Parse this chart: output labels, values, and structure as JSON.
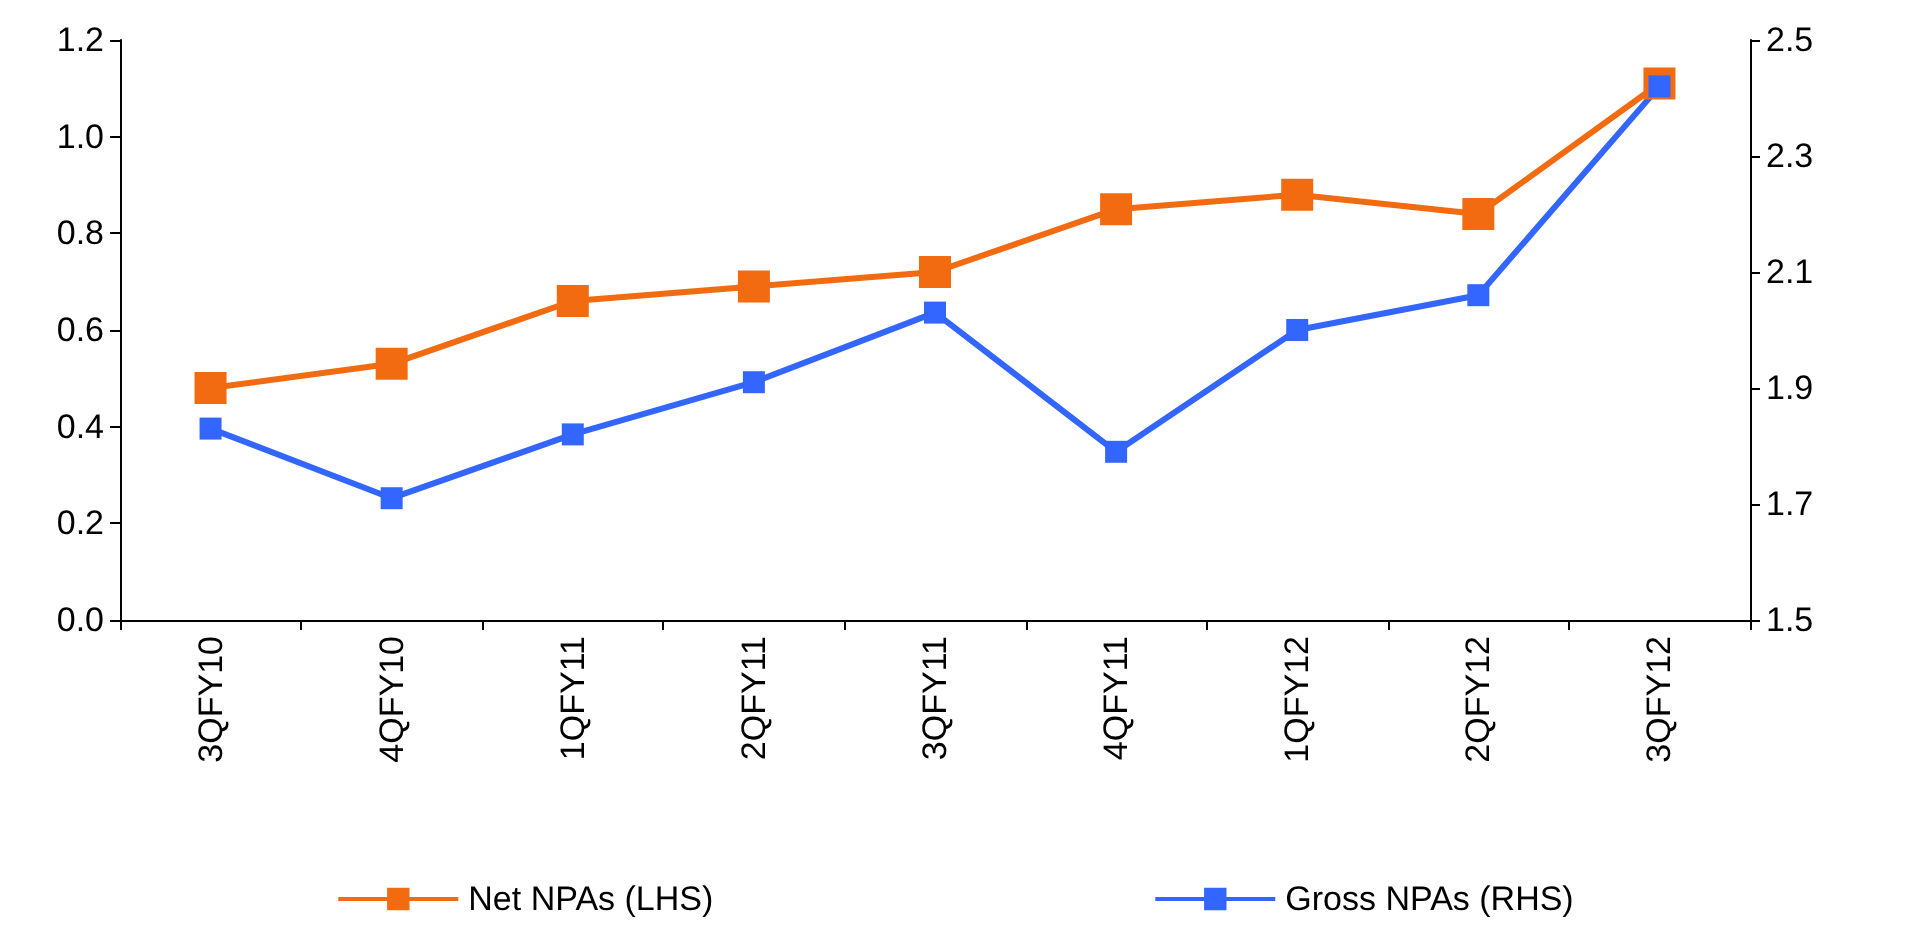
{
  "chart_data": {
    "type": "line",
    "categories": [
      "3QFY10",
      "4QFY10",
      "1QFY11",
      "2QFY11",
      "3QFY11",
      "4QFY11",
      "1QFY12",
      "2QFY12",
      "3QFY12"
    ],
    "series": [
      {
        "name": "Net NPAs (LHS)",
        "color": "#f26b10",
        "values": [
          0.48,
          0.53,
          0.66,
          0.69,
          0.72,
          0.85,
          0.88,
          0.84,
          1.11
        ]
      },
      {
        "name": "Gross NPAs (RHS)",
        "color": "#3366ff",
        "axis": "y2",
        "values": [
          1.83,
          1.71,
          1.82,
          1.91,
          2.03,
          1.79,
          2.0,
          2.06,
          2.42
        ]
      }
    ],
    "ylim": [
      0,
      1.2
    ],
    "yticks": [
      {
        "value": 0,
        "label": "0.0"
      },
      0.2,
      0.4,
      0.6,
      0.8,
      {
        "value": 1,
        "label": "1.0"
      },
      1.2
    ],
    "y2lim": [
      1.5,
      2.5
    ],
    "y2ticks": [
      1.5,
      1.7,
      1.9,
      2.1,
      2.3,
      2.5
    ],
    "grid": false,
    "legend": "bottom",
    "marker": "square",
    "line_style": "solid"
  }
}
